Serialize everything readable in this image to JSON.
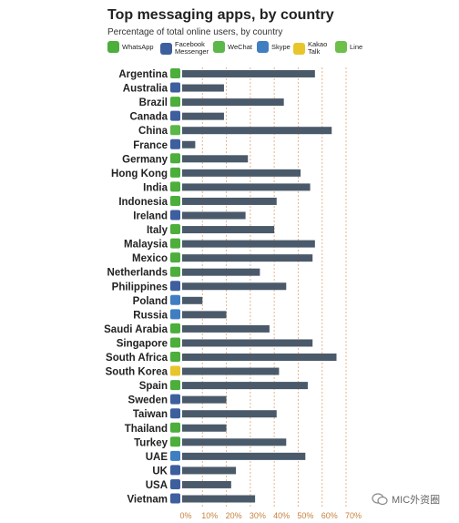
{
  "chart_data": {
    "type": "bar",
    "orientation": "horizontal",
    "title": "Top messaging apps, by country",
    "subtitle": "Percentage of total online users, by country",
    "legend": [
      {
        "name": "WhatsApp",
        "color": "#4cae3b",
        "icon": "whatsapp-icon"
      },
      {
        "name": "Facebook Messenger",
        "color": "#3d5f9e",
        "icon": "messenger-icon"
      },
      {
        "name": "WeChat",
        "color": "#5ab848",
        "icon": "wechat-icon"
      },
      {
        "name": "Skype",
        "color": "#3f7fc1",
        "icon": "skype-icon"
      },
      {
        "name": "Kakao Talk",
        "color": "#e8c62a",
        "icon": "kakao-icon"
      },
      {
        "name": "Line",
        "color": "#6cc04a",
        "icon": "line-icon"
      }
    ],
    "categories": [
      "Argentina",
      "Australia",
      "Brazil",
      "Canada",
      "China",
      "France",
      "Germany",
      "Hong Kong",
      "India",
      "Indonesia",
      "Ireland",
      "Italy",
      "Malaysia",
      "Mexico",
      "Netherlands",
      "Philippines",
      "Poland",
      "Russia",
      "Saudi Arabia",
      "Singapore",
      "South Africa",
      "South Korea",
      "Spain",
      "Sweden",
      "Taiwan",
      "Thailand",
      "Turkey",
      "UAE",
      "UK",
      "USA",
      "Vietnam"
    ],
    "values": [
      57,
      19,
      44,
      19,
      64,
      7,
      29,
      51,
      55,
      41,
      28,
      40,
      57,
      56,
      34,
      45,
      10,
      20,
      38,
      56,
      66,
      42,
      54,
      20,
      41,
      20,
      45,
      53,
      24,
      22,
      32
    ],
    "top_app": [
      "WhatsApp",
      "Facebook Messenger",
      "WhatsApp",
      "Facebook Messenger",
      "WeChat",
      "Facebook Messenger",
      "WhatsApp",
      "WhatsApp",
      "WhatsApp",
      "WhatsApp",
      "Facebook Messenger",
      "WhatsApp",
      "WhatsApp",
      "WhatsApp",
      "WhatsApp",
      "Facebook Messenger",
      "Skype",
      "Skype",
      "WhatsApp",
      "WhatsApp",
      "WhatsApp",
      "Kakao Talk",
      "WhatsApp",
      "Facebook Messenger",
      "Facebook Messenger",
      "WhatsApp",
      "WhatsApp",
      "Skype",
      "Facebook Messenger",
      "Facebook Messenger",
      "Facebook Messenger"
    ],
    "xlim": [
      0,
      70
    ],
    "xticks": [
      "0%",
      "10%",
      "20%",
      "30%",
      "40%",
      "50%",
      "60%",
      "70%"
    ],
    "bar_color": "#4a5a6a",
    "gridline_color": "#e8b48a",
    "grid": true,
    "xlabel": "",
    "ylabel": ""
  },
  "watermark": "MIC外资圈"
}
